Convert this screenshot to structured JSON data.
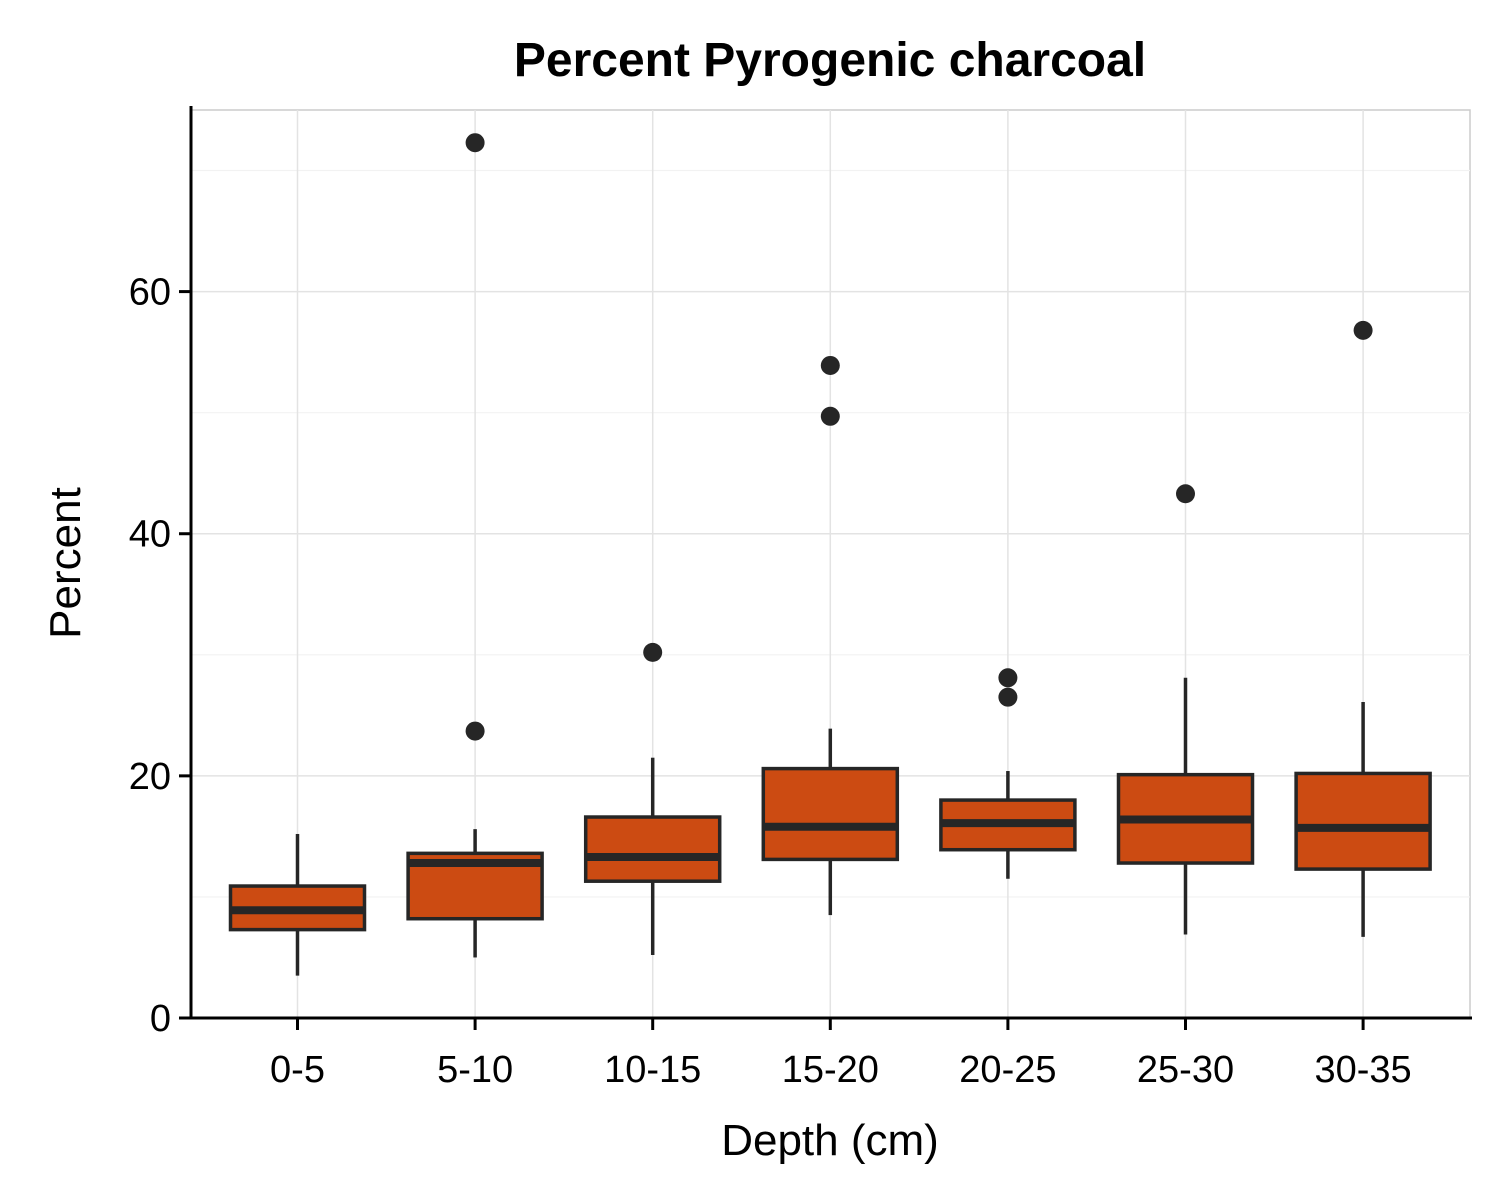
{
  "chart_data": {
    "type": "boxplot",
    "title": "Percent Pyrogenic charcoal",
    "xlabel": "Depth (cm)",
    "ylabel": "Percent",
    "ylim": [
      0,
      75
    ],
    "yticks": [
      0,
      20,
      40,
      60
    ],
    "grid": true,
    "box_color": "#cc4b12",
    "line_color": "#262626",
    "categories": [
      "0-5",
      "5-10",
      "10-15",
      "15-20",
      "20-25",
      "25-30",
      "30-35"
    ],
    "boxes": [
      {
        "category": "0-5",
        "whisker_low": 3.5,
        "q1": 7.3,
        "median": 8.9,
        "q3": 10.9,
        "whisker_high": 15.2,
        "outliers": []
      },
      {
        "category": "5-10",
        "whisker_low": 5.0,
        "q1": 8.2,
        "median": 12.8,
        "q3": 13.6,
        "whisker_high": 15.6,
        "outliers": [
          23.7,
          72.3
        ]
      },
      {
        "category": "10-15",
        "whisker_low": 5.2,
        "q1": 11.3,
        "median": 13.3,
        "q3": 16.6,
        "whisker_high": 21.5,
        "outliers": [
          30.2
        ]
      },
      {
        "category": "15-20",
        "whisker_low": 8.5,
        "q1": 13.1,
        "median": 15.8,
        "q3": 20.6,
        "whisker_high": 23.9,
        "outliers": [
          49.7,
          53.9
        ]
      },
      {
        "category": "20-25",
        "whisker_low": 11.5,
        "q1": 13.9,
        "median": 16.1,
        "q3": 18.0,
        "whisker_high": 20.4,
        "outliers": [
          26.5,
          28.1
        ]
      },
      {
        "category": "25-30",
        "whisker_low": 6.9,
        "q1": 12.8,
        "median": 16.4,
        "q3": 20.1,
        "whisker_high": 28.1,
        "outliers": [
          43.3
        ]
      },
      {
        "category": "30-35",
        "whisker_low": 6.7,
        "q1": 12.3,
        "median": 15.7,
        "q3": 20.2,
        "whisker_high": 26.1,
        "outliers": [
          56.8
        ]
      }
    ]
  }
}
